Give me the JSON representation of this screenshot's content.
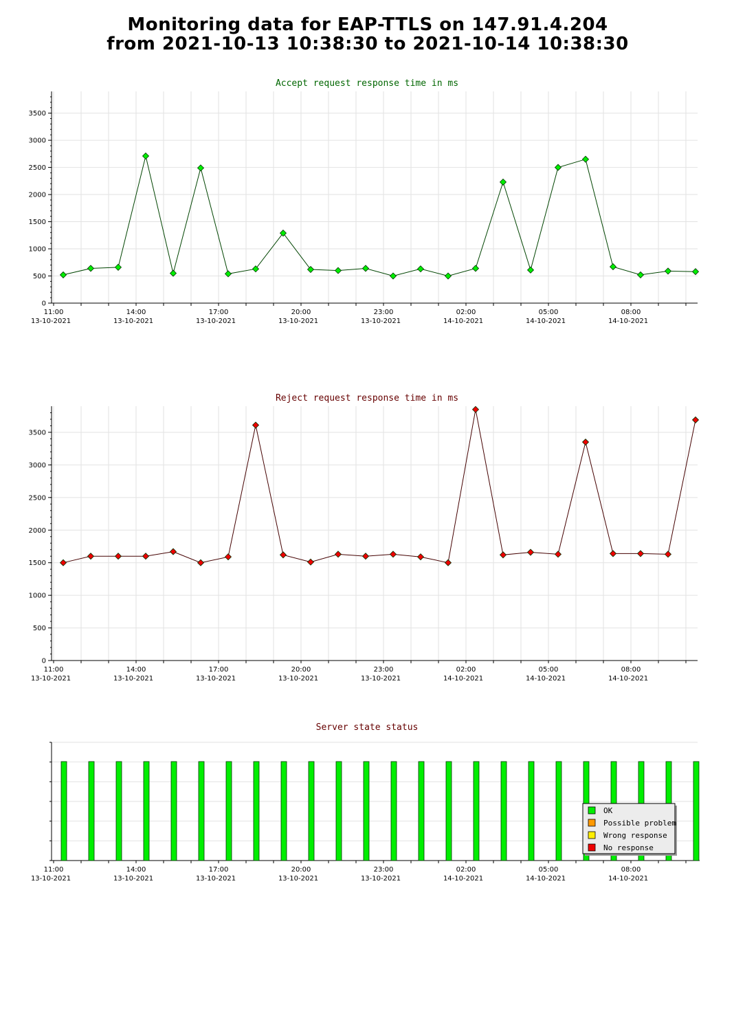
{
  "header": {
    "line1": "Monitoring data for EAP-TTLS on 147.91.4.204",
    "line2": "from 2021-10-13 10:38:30 to 2021-10-14 10:38:30"
  },
  "chart_data": [
    {
      "type": "line",
      "title": "Accept request response time in ms",
      "title_color": "#006600",
      "line_color": "#004400",
      "marker_color": "#00ee00",
      "grid": true,
      "ylim": [
        0,
        3900
      ],
      "y_ticks": [
        0,
        500,
        1000,
        1500,
        2000,
        2500,
        3000,
        3500
      ],
      "x_ticks": [
        {
          "time": "11:00",
          "date": "13-10-2021"
        },
        {
          "time": "14:00",
          "date": "13-10-2021"
        },
        {
          "time": "17:00",
          "date": "13-10-2021"
        },
        {
          "time": "20:00",
          "date": "13-10-2021"
        },
        {
          "time": "23:00",
          "date": "13-10-2021"
        },
        {
          "time": "02:00",
          "date": "14-10-2021"
        },
        {
          "time": "05:00",
          "date": "14-10-2021"
        },
        {
          "time": "08:00",
          "date": "14-10-2021"
        }
      ],
      "values": [
        520,
        640,
        660,
        2710,
        550,
        2490,
        540,
        630,
        1290,
        620,
        600,
        640,
        500,
        630,
        500,
        640,
        2230,
        610,
        2500,
        2650,
        670,
        520,
        590,
        580
      ]
    },
    {
      "type": "line",
      "title": "Reject request response time in ms",
      "title_color": "#660000",
      "line_color": "#440000",
      "marker_color": "#ee0000",
      "grid": true,
      "ylim": [
        0,
        3900
      ],
      "y_ticks": [
        0,
        500,
        1000,
        1500,
        2000,
        2500,
        3000,
        3500
      ],
      "x_ticks": [
        {
          "time": "11:00",
          "date": "13-10-2021"
        },
        {
          "time": "14:00",
          "date": "13-10-2021"
        },
        {
          "time": "17:00",
          "date": "13-10-2021"
        },
        {
          "time": "20:00",
          "date": "13-10-2021"
        },
        {
          "time": "23:00",
          "date": "13-10-2021"
        },
        {
          "time": "02:00",
          "date": "14-10-2021"
        },
        {
          "time": "05:00",
          "date": "14-10-2021"
        },
        {
          "time": "08:00",
          "date": "14-10-2021"
        }
      ],
      "values": [
        1500,
        1600,
        1600,
        1600,
        1670,
        1500,
        1590,
        3610,
        1620,
        1510,
        1630,
        1600,
        1630,
        1590,
        1500,
        3850,
        1620,
        1660,
        1630,
        3350,
        1640,
        1640,
        1630,
        3690
      ]
    },
    {
      "type": "bar",
      "title": "Server state status",
      "title_color": "#660000",
      "grid": true,
      "bar_color": "#00ee00",
      "bar_level": 1,
      "statuses": [
        "OK",
        "OK",
        "OK",
        "OK",
        "OK",
        "OK",
        "OK",
        "OK",
        "OK",
        "OK",
        "OK",
        "OK",
        "OK",
        "OK",
        "OK",
        "OK",
        "OK",
        "OK",
        "OK",
        "OK",
        "OK",
        "OK",
        "OK",
        "OK"
      ],
      "x_ticks": [
        {
          "time": "11:00",
          "date": "13-10-2021"
        },
        {
          "time": "14:00",
          "date": "13-10-2021"
        },
        {
          "time": "17:00",
          "date": "13-10-2021"
        },
        {
          "time": "20:00",
          "date": "13-10-2021"
        },
        {
          "time": "23:00",
          "date": "13-10-2021"
        },
        {
          "time": "02:00",
          "date": "14-10-2021"
        },
        {
          "time": "05:00",
          "date": "14-10-2021"
        },
        {
          "time": "08:00",
          "date": "14-10-2021"
        }
      ],
      "legend_position": "bottom-right",
      "legend": [
        {
          "label": "OK",
          "color": "#00ee00"
        },
        {
          "label": "Possible problem",
          "color": "#ff9900"
        },
        {
          "label": "Wrong response",
          "color": "#ffee00"
        },
        {
          "label": "No response",
          "color": "#ee0000"
        }
      ]
    }
  ]
}
